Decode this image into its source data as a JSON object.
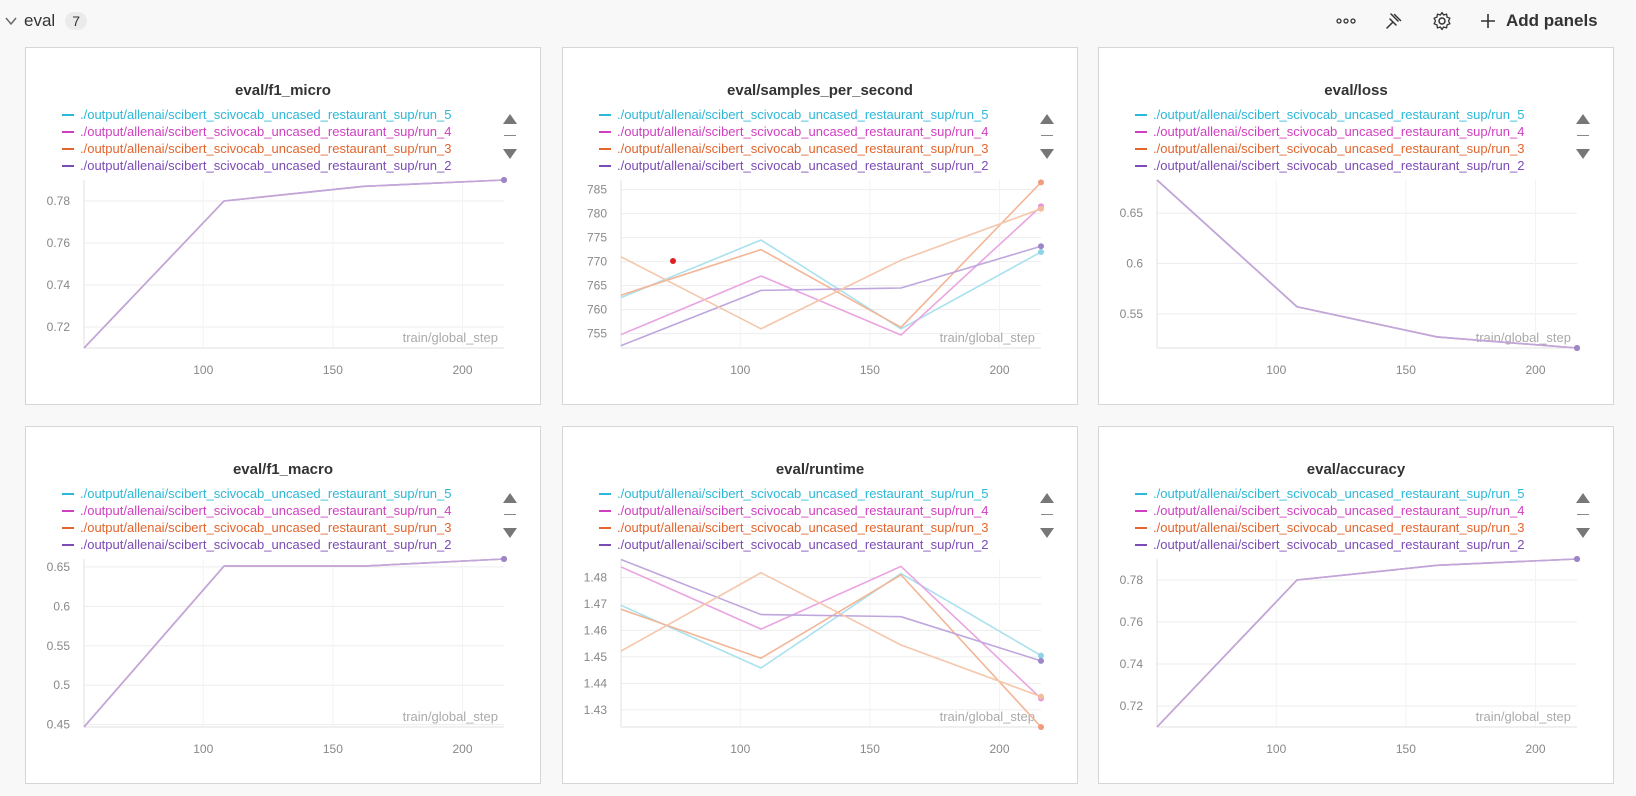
{
  "section": {
    "title": "eval",
    "count": "7"
  },
  "toolbar": {
    "more_icon": "more-horizontal-icon",
    "pin_icon": "pin-icon",
    "settings_icon": "gear-icon",
    "add_panels_label": "Add panels"
  },
  "colors": {
    "run_5": "#2cb8d8",
    "run_4": "#d03fc0",
    "run_3": "#e2652d",
    "run_2": "#7b4bb6"
  },
  "legend": [
    "./output/allenai/scibert_scivocab_uncased_restaurant_sup/run_5",
    "./output/allenai/scibert_scivocab_uncased_restaurant_sup/run_4",
    "./output/allenai/scibert_scivocab_uncased_restaurant_sup/run_3",
    "./output/allenai/scibert_scivocab_uncased_restaurant_sup/run_2"
  ],
  "chart_data": [
    {
      "type": "line",
      "title": "eval/f1_micro",
      "xlabel": "train/global_step",
      "ylabel": "",
      "x": [
        54,
        108,
        162,
        216
      ],
      "xlim": [
        54,
        216
      ],
      "ylim": [
        0.71,
        0.79
      ],
      "xticks": [
        100,
        150,
        200
      ],
      "yticks": [
        0.72,
        0.74,
        0.76,
        0.78
      ],
      "ytick_labels": [
        "0.72",
        "0.74",
        "0.76",
        "0.78"
      ],
      "series": [
        {
          "name": "./output/allenai/scibert_scivocab_uncased_restaurant_sup/run_5",
          "values": [
            0.71,
            0.78,
            0.787,
            0.79
          ]
        },
        {
          "name": "./output/allenai/scibert_scivocab_uncased_restaurant_sup/run_4",
          "values": [
            0.71,
            0.78,
            0.787,
            0.79
          ]
        },
        {
          "name": "./output/allenai/scibert_scivocab_uncased_restaurant_sup/run_3",
          "values": [
            0.71,
            0.78,
            0.787,
            0.79
          ]
        },
        {
          "name": "./output/allenai/scibert_scivocab_uncased_restaurant_sup/run_2",
          "values": [
            0.71,
            0.78,
            0.787,
            0.79
          ]
        }
      ]
    },
    {
      "type": "line",
      "title": "eval/samples_per_second",
      "xlabel": "train/global_step",
      "ylabel": "",
      "x": [
        54,
        108,
        162,
        216
      ],
      "xlim": [
        54,
        216
      ],
      "ylim": [
        752,
        787
      ],
      "xticks": [
        100,
        150,
        200
      ],
      "yticks": [
        755,
        760,
        765,
        770,
        775,
        780,
        785
      ],
      "ytick_labels": [
        "755",
        "760",
        "765",
        "770",
        "775",
        "780",
        "785"
      ],
      "series": [
        {
          "name": "./output/allenai/scibert_scivocab_uncased_restaurant_sup/run_5",
          "values": [
            762.5,
            774.5,
            756,
            772
          ]
        },
        {
          "name": "./output/allenai/scibert_scivocab_uncased_restaurant_sup/run_4",
          "values": [
            754.8,
            767,
            754.7,
            781.5
          ]
        },
        {
          "name": "./output/allenai/scibert_scivocab_uncased_restaurant_sup/run_3",
          "values": [
            763,
            772.5,
            756.3,
            786.5
          ]
        },
        {
          "name": "./output/allenai/scibert_scivocab_uncased_restaurant_sup/run_2",
          "values": [
            752.5,
            764,
            764.5,
            773.2
          ]
        },
        {
          "name": "",
          "values": [
            771,
            756,
            770.3,
            781
          ]
        }
      ]
    },
    {
      "type": "line",
      "title": "eval/loss",
      "xlabel": "train/global_step",
      "ylabel": "",
      "x": [
        54,
        108,
        162,
        216
      ],
      "xlim": [
        54,
        216
      ],
      "ylim": [
        0.516,
        0.683
      ],
      "xticks": [
        100,
        150,
        200
      ],
      "yticks": [
        0.55,
        0.6,
        0.65
      ],
      "ytick_labels": [
        "0.55",
        "0.6",
        "0.65"
      ],
      "series": [
        {
          "name": "./output/allenai/scibert_scivocab_uncased_restaurant_sup/run_5",
          "values": [
            0.683,
            0.557,
            0.527,
            0.516
          ]
        },
        {
          "name": "./output/allenai/scibert_scivocab_uncased_restaurant_sup/run_4",
          "values": [
            0.683,
            0.557,
            0.527,
            0.516
          ]
        },
        {
          "name": "./output/allenai/scibert_scivocab_uncased_restaurant_sup/run_3",
          "values": [
            0.683,
            0.557,
            0.527,
            0.516
          ]
        },
        {
          "name": "./output/allenai/scibert_scivocab_uncased_restaurant_sup/run_2",
          "values": [
            0.683,
            0.557,
            0.527,
            0.516
          ]
        }
      ]
    },
    {
      "type": "line",
      "title": "eval/f1_macro",
      "xlabel": "train/global_step",
      "ylabel": "",
      "x": [
        54,
        108,
        162,
        216
      ],
      "xlim": [
        54,
        216
      ],
      "ylim": [
        0.447,
        0.66
      ],
      "xticks": [
        100,
        150,
        200
      ],
      "yticks": [
        0.45,
        0.5,
        0.55,
        0.6,
        0.65
      ],
      "ytick_labels": [
        "0.45",
        "0.5",
        "0.55",
        "0.6",
        "0.65"
      ],
      "series": [
        {
          "name": "./output/allenai/scibert_scivocab_uncased_restaurant_sup/run_5",
          "values": [
            0.447,
            0.651,
            0.651,
            0.66
          ]
        },
        {
          "name": "./output/allenai/scibert_scivocab_uncased_restaurant_sup/run_4",
          "values": [
            0.447,
            0.651,
            0.651,
            0.66
          ]
        },
        {
          "name": "./output/allenai/scibert_scivocab_uncased_restaurant_sup/run_3",
          "values": [
            0.447,
            0.651,
            0.651,
            0.66
          ]
        },
        {
          "name": "./output/allenai/scibert_scivocab_uncased_restaurant_sup/run_2",
          "values": [
            0.447,
            0.651,
            0.651,
            0.66
          ]
        }
      ]
    },
    {
      "type": "line",
      "title": "eval/runtime",
      "xlabel": "train/global_step",
      "ylabel": "",
      "x": [
        54,
        108,
        162,
        216
      ],
      "xlim": [
        54,
        216
      ],
      "ylim": [
        1.4235,
        1.487
      ],
      "xticks": [
        100,
        150,
        200
      ],
      "yticks": [
        1.43,
        1.44,
        1.45,
        1.46,
        1.47,
        1.48
      ],
      "ytick_labels": [
        "1.43",
        "1.44",
        "1.45",
        "1.46",
        "1.47",
        "1.48"
      ],
      "series": [
        {
          "name": "./output/allenai/scibert_scivocab_uncased_restaurant_sup/run_5",
          "values": [
            1.4695,
            1.4458,
            1.4815,
            1.4505
          ]
        },
        {
          "name": "./output/allenai/scibert_scivocab_uncased_restaurant_sup/run_4",
          "values": [
            1.484,
            1.4605,
            1.4842,
            1.4343
          ]
        },
        {
          "name": "./output/allenai/scibert_scivocab_uncased_restaurant_sup/run_3",
          "values": [
            1.468,
            1.4495,
            1.481,
            1.4235
          ]
        },
        {
          "name": "./output/allenai/scibert_scivocab_uncased_restaurant_sup/run_2",
          "values": [
            1.4868,
            1.466,
            1.4652,
            1.4485
          ]
        },
        {
          "name": "",
          "values": [
            1.4522,
            1.4818,
            1.4545,
            1.435
          ]
        }
      ]
    },
    {
      "type": "line",
      "title": "eval/accuracy",
      "xlabel": "train/global_step",
      "ylabel": "",
      "x": [
        54,
        108,
        162,
        216
      ],
      "xlim": [
        54,
        216
      ],
      "ylim": [
        0.71,
        0.79
      ],
      "xticks": [
        100,
        150,
        200
      ],
      "yticks": [
        0.72,
        0.74,
        0.76,
        0.78
      ],
      "ytick_labels": [
        "0.72",
        "0.74",
        "0.76",
        "0.78"
      ],
      "series": [
        {
          "name": "./output/allenai/scibert_scivocab_uncased_restaurant_sup/run_5",
          "values": [
            0.71,
            0.78,
            0.787,
            0.79
          ]
        },
        {
          "name": "./output/allenai/scibert_scivocab_uncased_restaurant_sup/run_4",
          "values": [
            0.71,
            0.78,
            0.787,
            0.79
          ]
        },
        {
          "name": "./output/allenai/scibert_scivocab_uncased_restaurant_sup/run_3",
          "values": [
            0.71,
            0.78,
            0.787,
            0.79
          ]
        },
        {
          "name": "./output/allenai/scibert_scivocab_uncased_restaurant_sup/run_2",
          "values": [
            0.71,
            0.78,
            0.787,
            0.79
          ]
        }
      ]
    }
  ]
}
